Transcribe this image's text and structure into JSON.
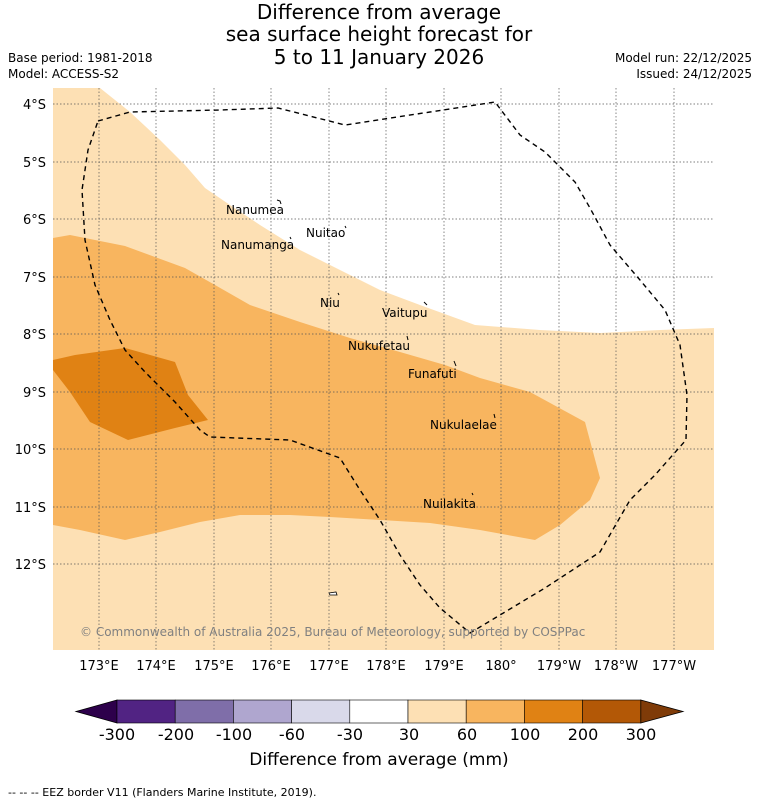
{
  "header": {
    "title_line1": "Difference from average",
    "title_line2": "sea surface height forecast for",
    "title_line3": "5 to 11 January 2026",
    "base_period": "Base period: 1981-2018",
    "model": "Model: ACCESS-S2",
    "model_run": "Model run: 22/12/2025",
    "issued": "Issued: 24/12/2025"
  },
  "map": {
    "lat_labels": [
      "4°S",
      "5°S",
      "6°S",
      "7°S",
      "8°S",
      "9°S",
      "10°S",
      "11°S",
      "12°S"
    ],
    "lon_labels": [
      "173°E",
      "174°E",
      "175°E",
      "176°E",
      "177°E",
      "178°E",
      "179°E",
      "180°",
      "179°W",
      "178°W",
      "177°W"
    ],
    "places": [
      {
        "name": "Nanumea"
      },
      {
        "name": "Nuitao"
      },
      {
        "name": "Nanumanga"
      },
      {
        "name": "Niu"
      },
      {
        "name": "Vaitupu"
      },
      {
        "name": "Nukufetau"
      },
      {
        "name": "Funafuti"
      },
      {
        "name": "Nukulaelae"
      },
      {
        "name": "Nuilakita"
      }
    ],
    "copyright": "© Commonwealth of Australia 2025, Bureau of Meteorology, supported by COSPPac"
  },
  "colorbar": {
    "label": "Difference from average (mm)",
    "ticks": [
      "-300",
      "-200",
      "-100",
      "-60",
      "-30",
      "30",
      "60",
      "100",
      "200",
      "300"
    ],
    "colors": [
      "#512383",
      "#7f6ea9",
      "#afa6cf",
      "#d9d9ea",
      "#ffffff",
      "#fde0b4",
      "#f8b55f",
      "#e08214",
      "#b35806"
    ],
    "low_extend_color": "#2d004b",
    "high_extend_color": "#7f3b08"
  },
  "footer": {
    "legend": "-- -- -- EEZ border V11 (Flanders Marine Institute, 2019)."
  }
}
